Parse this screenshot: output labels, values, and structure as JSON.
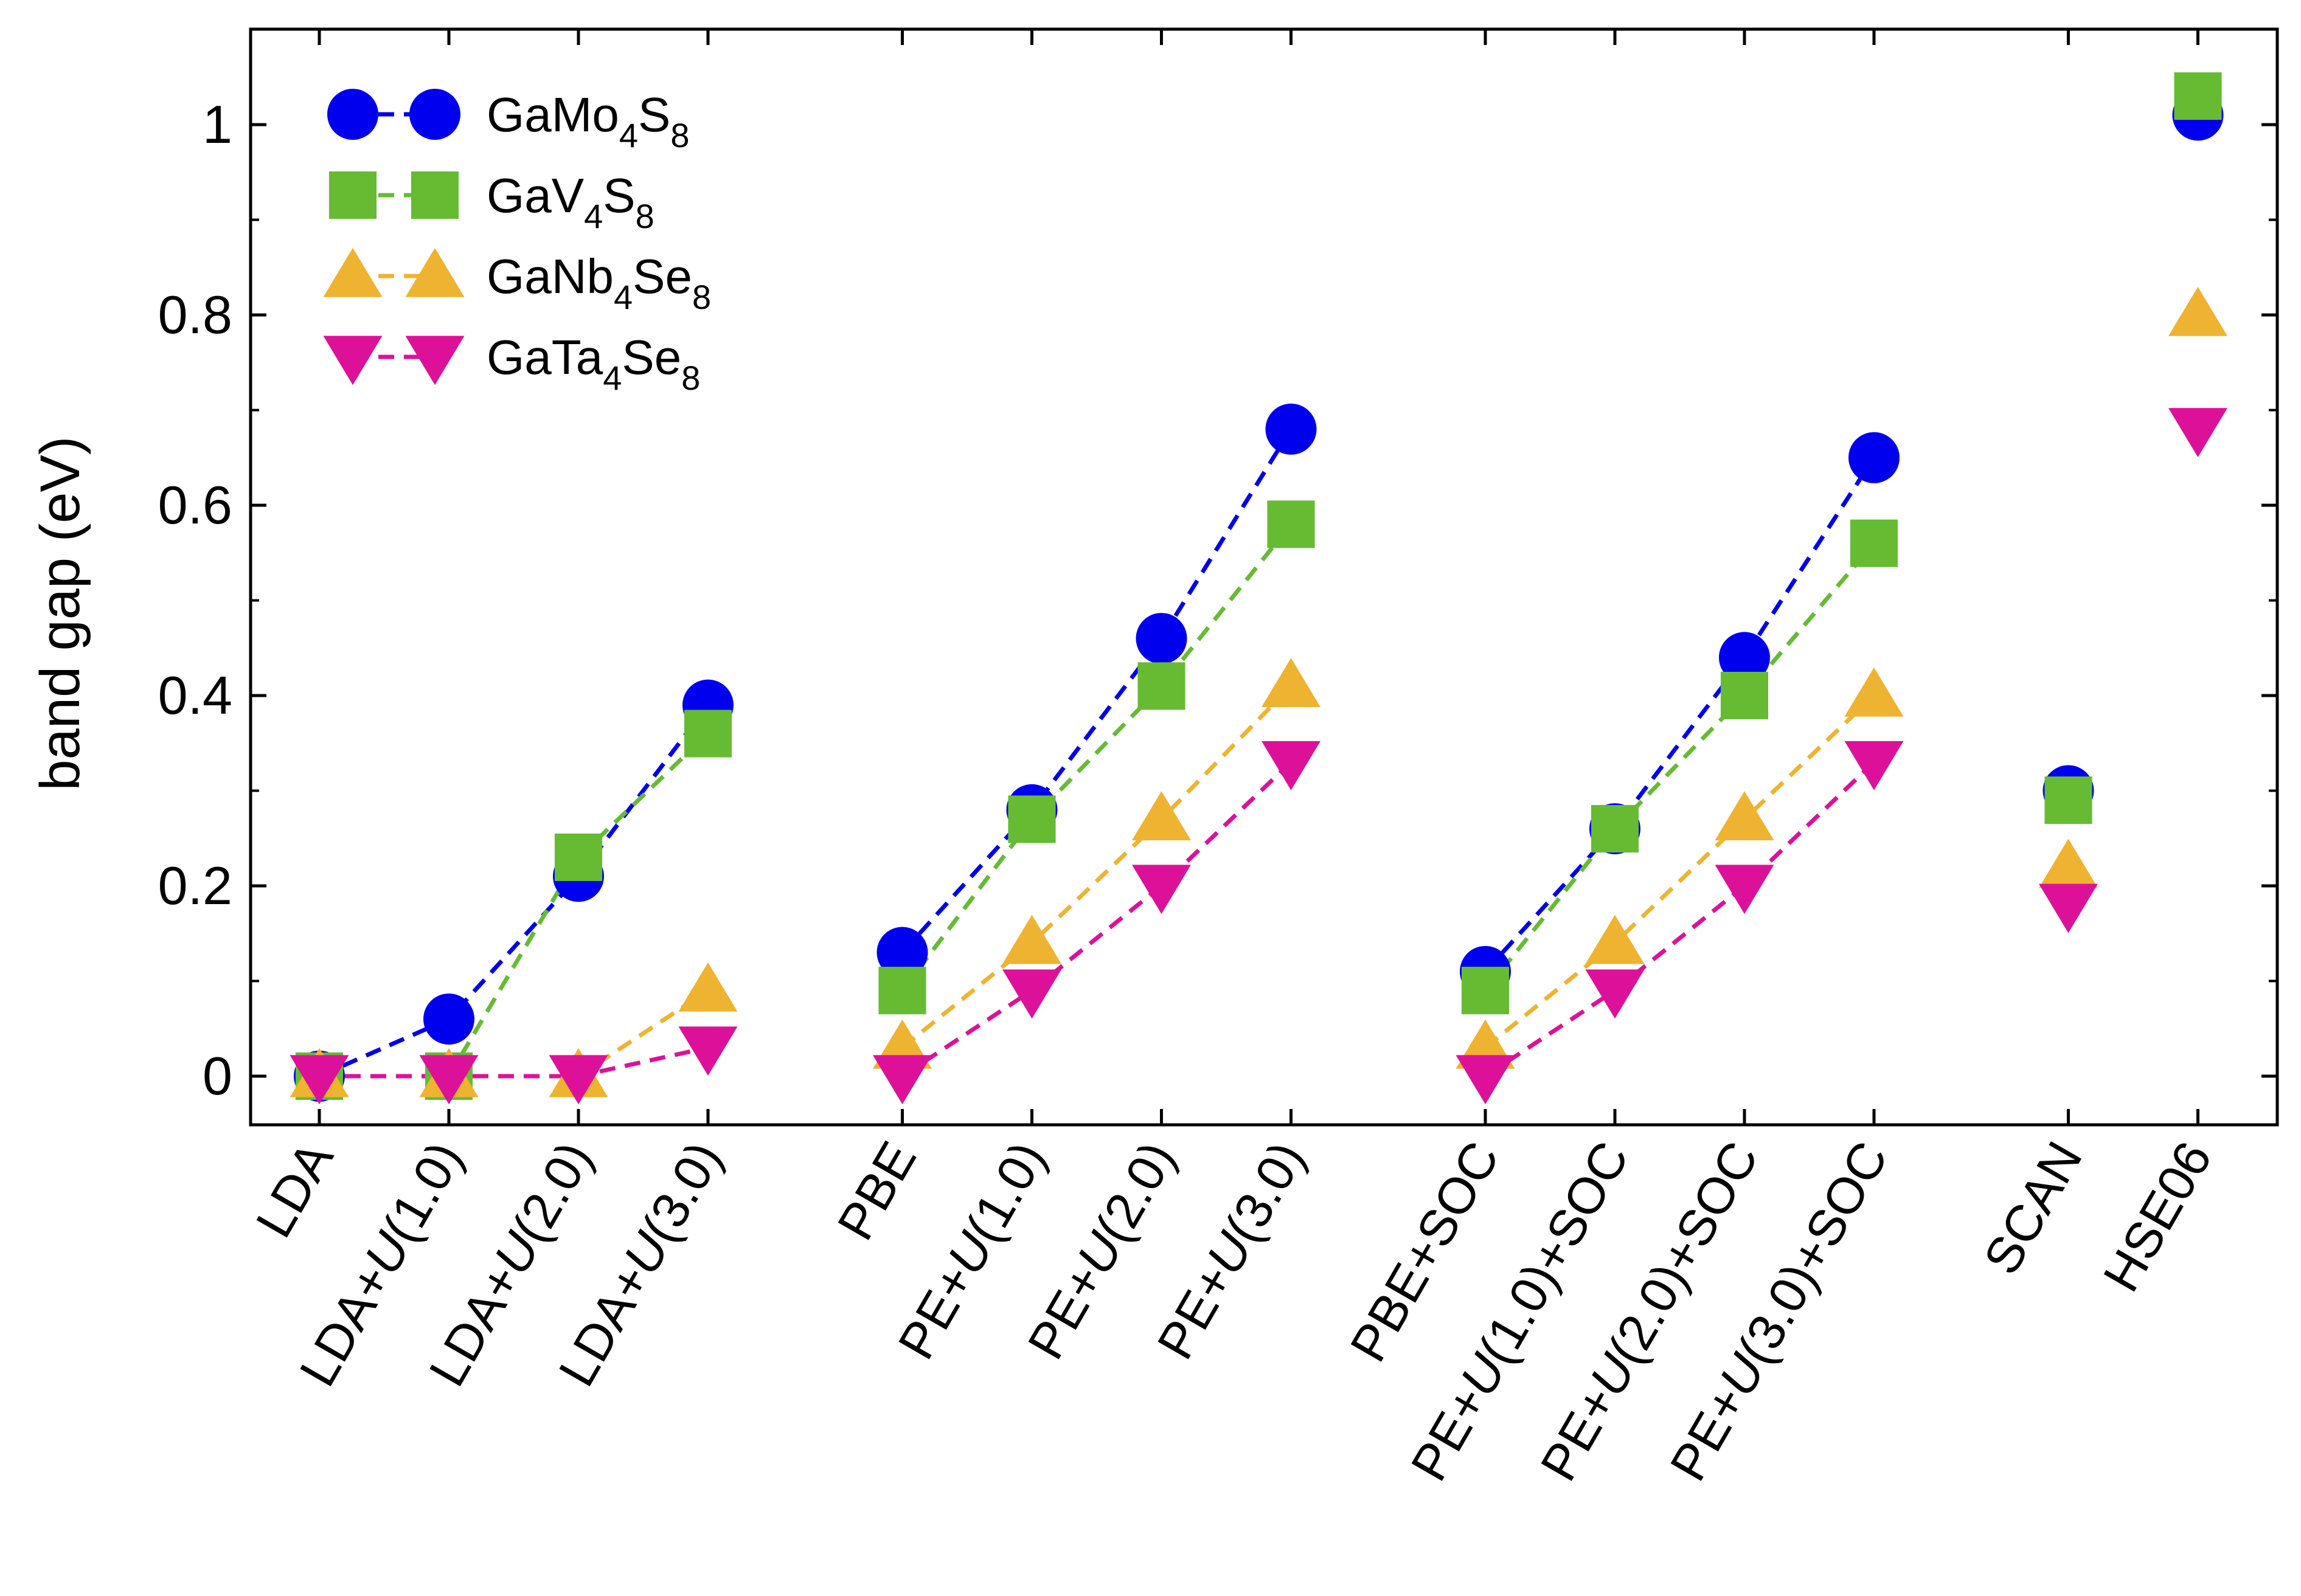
{
  "chart_data": {
    "type": "scatter",
    "title": "",
    "xlabel": "",
    "ylabel": "band gap (eV)",
    "ylim": [
      -0.05,
      1.1
    ],
    "yticks": [
      "0",
      "0.2",
      "0.4",
      "0.6",
      "0.8",
      "1"
    ],
    "ytick_values": [
      0,
      0.2,
      0.4,
      0.6,
      0.8,
      1.0
    ],
    "grid": false,
    "legend_position": "top-left",
    "categories": [
      {
        "pre": "LDA",
        "u": "",
        "post": ""
      },
      {
        "pre": "LDA+",
        "u": "U",
        "post": "(1.0)"
      },
      {
        "pre": "LDA+",
        "u": "U",
        "post": "(2.0)"
      },
      {
        "pre": "LDA+",
        "u": "U",
        "post": "(3.0)"
      },
      {
        "pre": "PBE",
        "u": "",
        "post": ""
      },
      {
        "pre": "PE+",
        "u": "U",
        "post": "(1.0)"
      },
      {
        "pre": "PE+",
        "u": "U",
        "post": "(2.0)"
      },
      {
        "pre": "PE+",
        "u": "U",
        "post": "(3.0)"
      },
      {
        "pre": "PBE+SOC",
        "u": "",
        "post": ""
      },
      {
        "pre": "PE+",
        "u": "U",
        "post": "(1.0)+SOC"
      },
      {
        "pre": "PE+",
        "u": "U",
        "post": "(2.0)+SOC"
      },
      {
        "pre": "PE+",
        "u": "U",
        "post": "(3.0)+SOC"
      },
      {
        "pre": "SCAN",
        "u": "",
        "post": ""
      },
      {
        "pre": "HSE06",
        "u": "",
        "post": ""
      }
    ],
    "tick_x_units": [
      0,
      1,
      2,
      3,
      4.5,
      5.5,
      6.5,
      7.5,
      9,
      10,
      11,
      12,
      13.5,
      14.5
    ],
    "marker_x_units": [
      0,
      1,
      2,
      3,
      4.5,
      5.5,
      6.5,
      7.5,
      9,
      10,
      11,
      12,
      13.5,
      14.5
    ],
    "line_groups": [
      [
        0,
        1,
        2,
        3
      ],
      [
        4,
        5,
        6,
        7
      ],
      [
        8,
        9,
        10,
        11
      ]
    ],
    "series": [
      {
        "name": "GaMo4S8",
        "label_parts": [
          "GaMo",
          "4",
          "S",
          "8"
        ],
        "color": "#0000ee",
        "marker": "circle",
        "values": [
          0.0,
          0.06,
          0.21,
          0.39,
          0.13,
          0.28,
          0.46,
          0.68,
          0.11,
          0.26,
          0.44,
          0.65,
          0.3,
          1.01
        ]
      },
      {
        "name": "GaV4S8",
        "label_parts": [
          "GaV",
          "4",
          "S",
          "8"
        ],
        "color": "#66bb33",
        "marker": "square",
        "values": [
          0.0,
          0.0,
          0.23,
          0.36,
          0.09,
          0.27,
          0.41,
          0.58,
          0.09,
          0.26,
          0.4,
          0.56,
          0.29,
          1.03
        ]
      },
      {
        "name": "GaNb4Se8",
        "label_parts": [
          "GaNb",
          "4",
          "Se",
          "8"
        ],
        "color": "#eeb330",
        "marker": "triangle-up",
        "values": [
          0.0,
          0.0,
          0.0,
          0.09,
          0.03,
          0.14,
          0.27,
          0.41,
          0.03,
          0.14,
          0.27,
          0.4,
          0.22,
          0.8
        ]
      },
      {
        "name": "GaTa4Se8",
        "label_parts": [
          "GaTa",
          "4",
          "Se",
          "8"
        ],
        "color": "#dd1199",
        "marker": "triangle-down",
        "values": [
          0.0,
          0.0,
          0.0,
          0.03,
          0.0,
          0.09,
          0.2,
          0.33,
          0.0,
          0.09,
          0.2,
          0.33,
          0.18,
          0.68
        ]
      }
    ]
  }
}
